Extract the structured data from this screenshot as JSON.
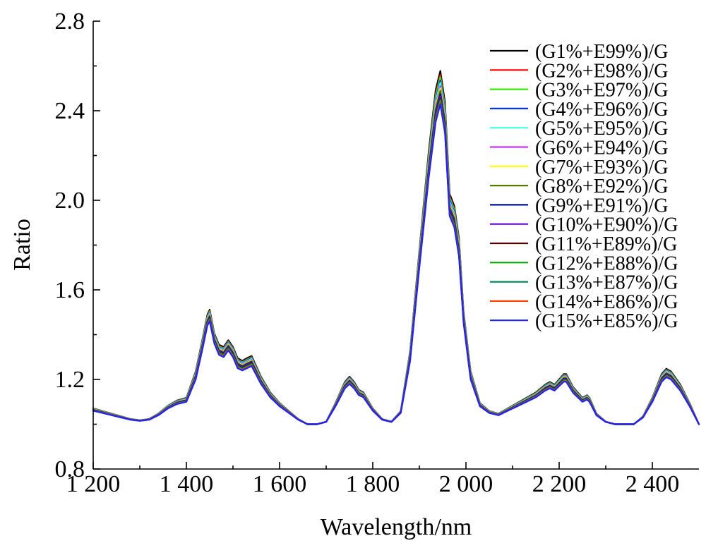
{
  "chart_data": {
    "type": "line",
    "xlabel": "Wavelength/nm",
    "ylabel": "Ratio",
    "xlim": [
      1200,
      2500
    ],
    "ylim": [
      0.8,
      2.8
    ],
    "xticks": [
      1200,
      1400,
      1600,
      1800,
      2000,
      2200,
      2400
    ],
    "xtick_labels": [
      "1 200",
      "1 400",
      "1 600",
      "1 800",
      "2 000",
      "2 200",
      "2 400"
    ],
    "yticks": [
      0.8,
      1.2,
      1.6,
      2.0,
      2.4,
      2.8
    ],
    "ytick_labels": [
      "0.8",
      "1.2",
      "1.6",
      "2.0",
      "2.4",
      "2.8"
    ],
    "grid": false,
    "legend_position": "top-right",
    "x": [
      1200,
      1220,
      1240,
      1260,
      1280,
      1300,
      1320,
      1340,
      1360,
      1380,
      1400,
      1420,
      1435,
      1445,
      1450,
      1460,
      1470,
      1480,
      1490,
      1500,
      1510,
      1520,
      1530,
      1540,
      1560,
      1580,
      1600,
      1620,
      1640,
      1660,
      1680,
      1700,
      1720,
      1740,
      1750,
      1760,
      1770,
      1780,
      1800,
      1820,
      1840,
      1860,
      1880,
      1900,
      1920,
      1935,
      1945,
      1955,
      1965,
      1975,
      1985,
      1995,
      2010,
      2030,
      2050,
      2070,
      2090,
      2110,
      2130,
      2150,
      2170,
      2180,
      2190,
      2200,
      2210,
      2215,
      2230,
      2250,
      2260,
      2265,
      2280,
      2300,
      2320,
      2340,
      2360,
      2380,
      2400,
      2420,
      2430,
      2440,
      2460,
      2480,
      2500
    ],
    "base": [
      1.06,
      1.05,
      1.04,
      1.03,
      1.02,
      1.015,
      1.02,
      1.04,
      1.07,
      1.09,
      1.1,
      1.2,
      1.34,
      1.44,
      1.46,
      1.36,
      1.31,
      1.3,
      1.33,
      1.3,
      1.25,
      1.24,
      1.25,
      1.26,
      1.18,
      1.12,
      1.08,
      1.05,
      1.02,
      1.0,
      1.0,
      1.01,
      1.08,
      1.16,
      1.18,
      1.16,
      1.13,
      1.12,
      1.06,
      1.02,
      1.01,
      1.05,
      1.28,
      1.7,
      2.1,
      2.35,
      2.43,
      2.3,
      1.93,
      1.88,
      1.75,
      1.45,
      1.2,
      1.08,
      1.05,
      1.04,
      1.06,
      1.08,
      1.1,
      1.12,
      1.15,
      1.16,
      1.15,
      1.17,
      1.19,
      1.19,
      1.14,
      1.1,
      1.11,
      1.1,
      1.04,
      1.01,
      1.0,
      1.0,
      1.0,
      1.03,
      1.1,
      1.19,
      1.21,
      1.2,
      1.15,
      1.08,
      1.0
    ],
    "series": [
      {
        "name": "(G1%+E99%)/G",
        "offset": 0.045,
        "peak_offset": 0.148,
        "color": "#000000"
      },
      {
        "name": "(G2%+E98%)/G",
        "offset": 0.04,
        "peak_offset": 0.13,
        "color": "#ff0000"
      },
      {
        "name": "(G3%+E97%)/G",
        "offset": 0.038,
        "peak_offset": 0.12,
        "color": "#33ee00"
      },
      {
        "name": "(G4%+E96%)/G",
        "offset": 0.035,
        "peak_offset": 0.105,
        "color": "#0033ff"
      },
      {
        "name": "(G5%+E95%)/G",
        "offset": 0.032,
        "peak_offset": 0.095,
        "color": "#44ffdd"
      },
      {
        "name": "(G6%+E94%)/G",
        "offset": 0.028,
        "peak_offset": 0.08,
        "color": "#cc33ff"
      },
      {
        "name": "(G7%+E93%)/G",
        "offset": 0.025,
        "peak_offset": 0.07,
        "color": "#ffff00"
      },
      {
        "name": "(G8%+E92%)/G",
        "offset": 0.022,
        "peak_offset": 0.06,
        "color": "#557700"
      },
      {
        "name": "(G9%+E91%)/G",
        "offset": 0.018,
        "peak_offset": 0.045,
        "color": "#001199"
      },
      {
        "name": "(G10%+E90%)/G",
        "offset": 0.015,
        "peak_offset": 0.035,
        "color": "#6600ee"
      },
      {
        "name": "(G11%+E89%)/G",
        "offset": 0.012,
        "peak_offset": 0.025,
        "color": "#550000"
      },
      {
        "name": "(G12%+E88%)/G",
        "offset": 0.009,
        "peak_offset": 0.018,
        "color": "#00aa00"
      },
      {
        "name": "(G13%+E87%)/G",
        "offset": 0.006,
        "peak_offset": 0.01,
        "color": "#008855"
      },
      {
        "name": "(G14%+E86%)/G",
        "offset": 0.003,
        "peak_offset": 0.005,
        "color": "#ff4400"
      },
      {
        "name": "(G15%+E85%)/G",
        "offset": 0.0,
        "peak_offset": 0.0,
        "color": "#2222ff"
      }
    ]
  }
}
